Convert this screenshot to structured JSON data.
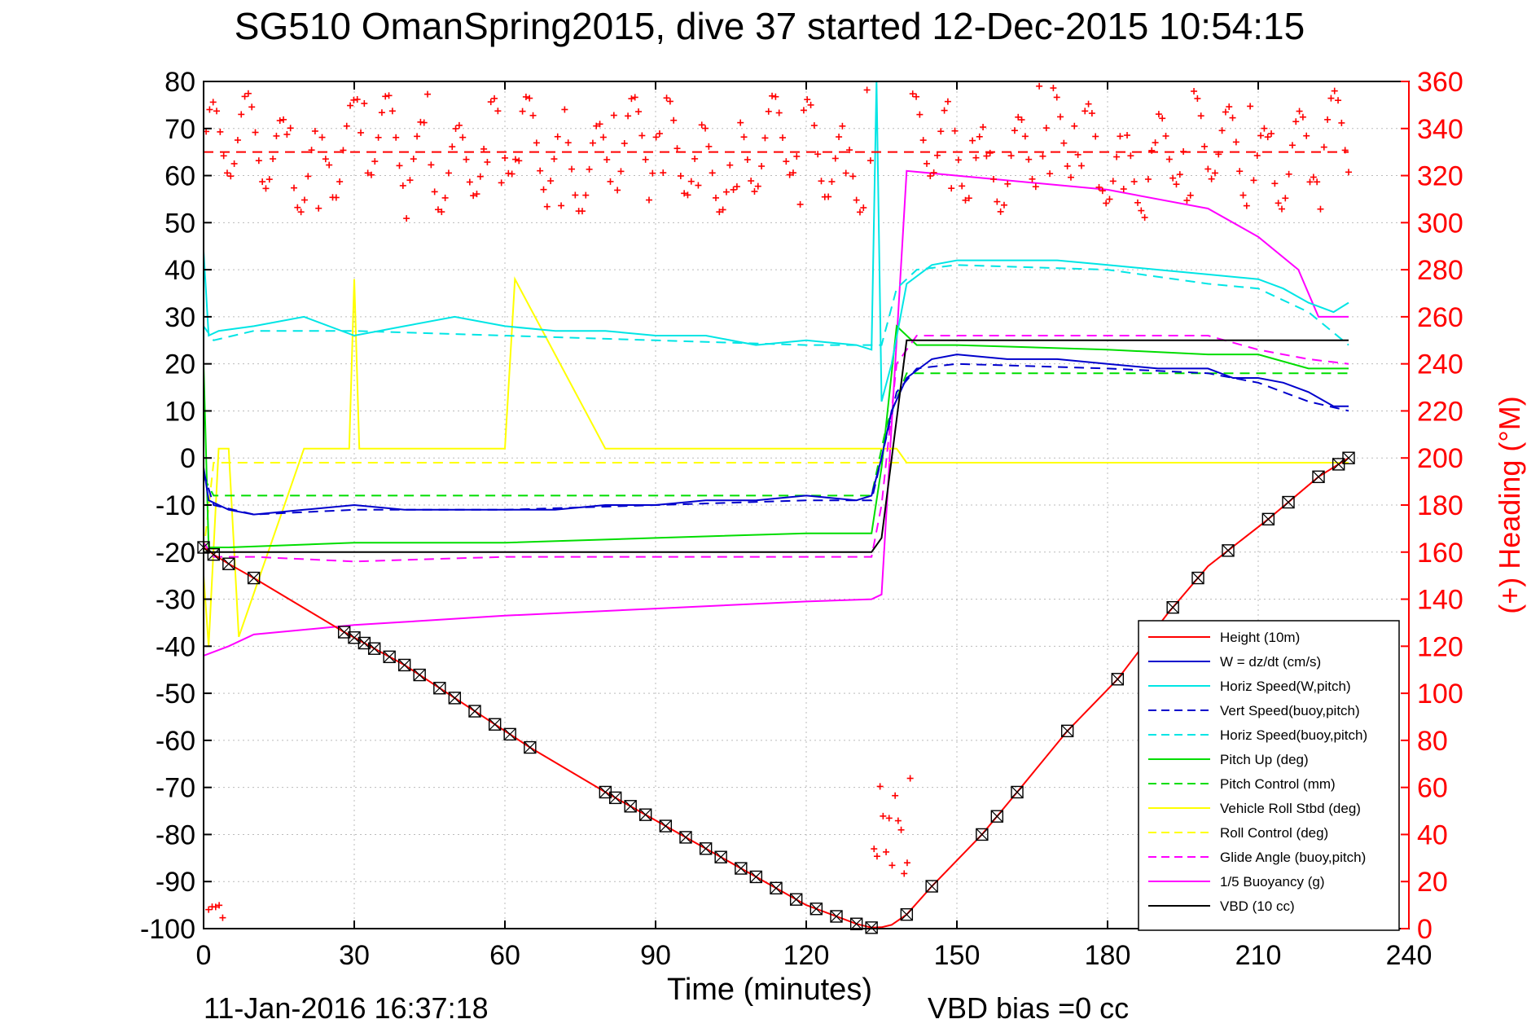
{
  "chart_data": {
    "type": "line",
    "title": "SG510 OmanSpring2015, dive 37 started 12-Dec-2015 10:54:15",
    "xlabel": "Time (minutes)",
    "ylabel": "",
    "y2label": "(+) Heading (°M)",
    "xlim": [
      0,
      240
    ],
    "ylim": [
      -100,
      80
    ],
    "y2lim": [
      0,
      360
    ],
    "xticks": [
      "0",
      "30",
      "60",
      "90",
      "120",
      "150",
      "180",
      "210",
      "240"
    ],
    "yticks": [
      "80",
      "70",
      "60",
      "50",
      "40",
      "30",
      "20",
      "10",
      "0",
      "-10",
      "-20",
      "-30",
      "-40",
      "-50",
      "-60",
      "-70",
      "-80",
      "-90",
      "-100"
    ],
    "y2ticks": [
      "360",
      "340",
      "320",
      "300",
      "280",
      "260",
      "240",
      "220",
      "200",
      "180",
      "160",
      "140",
      "120",
      "100",
      "80",
      "60",
      "40",
      "20",
      "0"
    ],
    "grid": true,
    "legend_position": "bottom-right",
    "footer_left": "11-Jan-2016 16:37:18",
    "footer_right": "VBD bias =0 cc",
    "heading_reference": 330,
    "legend": [
      {
        "label": "Height (10m)",
        "color": "#ff0000",
        "dash": false
      },
      {
        "label": "W = dz/dt (cm/s)",
        "color": "#0000cc",
        "dash": false
      },
      {
        "label": "Horiz Speed(W,pitch)",
        "color": "#00e5e5",
        "dash": false
      },
      {
        "label": "Vert Speed(buoy,pitch)",
        "color": "#0000cc",
        "dash": true
      },
      {
        "label": "Horiz Speed(buoy,pitch)",
        "color": "#00e5e5",
        "dash": true
      },
      {
        "label": "Pitch Up (deg)",
        "color": "#00dd00",
        "dash": false
      },
      {
        "label": "Pitch Control (mm)",
        "color": "#00dd00",
        "dash": true
      },
      {
        "label": "Vehicle Roll Stbd (deg)",
        "color": "#ffff00",
        "dash": false
      },
      {
        "label": "Roll Control (deg)",
        "color": "#ffff00",
        "dash": true
      },
      {
        "label": "Glide Angle (buoy,pitch)",
        "color": "#ff00ff",
        "dash": true
      },
      {
        "label": "1/5 Buoyancy (g)",
        "color": "#ff00ff",
        "dash": false
      },
      {
        "label": "VBD (10 cc)",
        "color": "#000000",
        "dash": false
      }
    ],
    "series": [
      {
        "name": "Height (10m)",
        "color": "#ff0000",
        "dash": false,
        "x": [
          0,
          2,
          5,
          10,
          28,
          40,
          60,
          65,
          80,
          100,
          120,
          130,
          133,
          135,
          137,
          140,
          145,
          155,
          162,
          172,
          182,
          192,
          200,
          212,
          222,
          228
        ],
        "y": [
          -19,
          -20.5,
          -22.5,
          -25.5,
          -37,
          -44,
          -58,
          -61.5,
          -71,
          -83,
          -95,
          -99,
          -99.8,
          -99.7,
          -99.2,
          -97,
          -91,
          -80,
          -71,
          -58,
          -47,
          -33,
          -23,
          -13,
          -4,
          0
        ]
      },
      {
        "name": "W = dz/dt (cm/s)",
        "color": "#0000cc",
        "dash": false,
        "x": [
          0,
          1,
          5,
          10,
          20,
          30,
          40,
          50,
          60,
          70,
          80,
          90,
          100,
          110,
          120,
          130,
          133,
          135,
          137,
          140,
          145,
          150,
          160,
          170,
          180,
          190,
          200,
          205,
          210,
          215,
          220,
          225,
          228
        ],
        "y": [
          -2,
          -9,
          -11,
          -12,
          -11,
          -10,
          -11,
          -11,
          -11,
          -11,
          -10,
          -10,
          -9,
          -9,
          -8,
          -9,
          -8,
          0,
          10,
          17,
          21,
          22,
          21,
          21,
          20,
          19,
          19,
          17,
          17,
          16,
          14,
          11,
          11
        ]
      },
      {
        "name": "Horiz Speed(W,pitch)",
        "color": "#00e5e5",
        "dash": false,
        "x": [
          0,
          1,
          3,
          10,
          20,
          30,
          40,
          50,
          60,
          70,
          80,
          90,
          100,
          110,
          120,
          130,
          133,
          134,
          135,
          137,
          140,
          145,
          150,
          160,
          170,
          180,
          190,
          200,
          210,
          215,
          220,
          225,
          228
        ],
        "y": [
          44,
          26,
          27,
          28,
          30,
          26,
          28,
          30,
          28,
          27,
          27,
          26,
          26,
          24,
          25,
          24,
          23,
          80,
          12,
          20,
          37,
          41,
          42,
          42,
          42,
          41,
          40,
          39,
          38,
          36,
          33,
          31,
          33
        ]
      },
      {
        "name": "Vert Speed(buoy,pitch)",
        "color": "#0000cc",
        "dash": true,
        "x": [
          0,
          2,
          10,
          30,
          60,
          90,
          120,
          133,
          135,
          138,
          142,
          150,
          180,
          200,
          210,
          220,
          228
        ],
        "y": [
          -3,
          -10,
          -12,
          -11,
          -11,
          -10,
          -9,
          -9,
          0,
          14,
          19,
          20,
          19,
          18,
          16,
          12,
          10
        ]
      },
      {
        "name": "Horiz Speed(buoy,pitch)",
        "color": "#00e5e5",
        "dash": true,
        "x": [
          0,
          2,
          10,
          30,
          60,
          90,
          120,
          133,
          135,
          138,
          142,
          150,
          180,
          200,
          210,
          220,
          228
        ],
        "y": [
          28,
          25,
          27,
          27,
          26,
          25,
          24,
          24,
          24,
          36,
          40,
          41,
          40,
          37,
          36,
          31,
          24
        ]
      },
      {
        "name": "Pitch Up (deg)",
        "color": "#00dd00",
        "dash": false,
        "x": [
          0,
          1,
          5,
          30,
          60,
          90,
          120,
          133,
          135,
          138,
          142,
          150,
          180,
          200,
          210,
          220,
          228
        ],
        "y": [
          20,
          -19,
          -19,
          -18,
          -18,
          -17,
          -16,
          -16,
          -2,
          28,
          24,
          24,
          23,
          22,
          22,
          19,
          19
        ]
      },
      {
        "name": "Pitch Control (mm)",
        "color": "#00dd00",
        "dash": true,
        "x": [
          0,
          2,
          133,
          136,
          140,
          228
        ],
        "y": [
          -4,
          -8,
          -8,
          7,
          18,
          18
        ]
      },
      {
        "name": "Vehicle Roll Stbd (deg)",
        "color": "#ffff00",
        "dash": false,
        "x": [
          0,
          1,
          3,
          5,
          7,
          20,
          29,
          30,
          31,
          40,
          60,
          62,
          80,
          100,
          120,
          133,
          135,
          138,
          140,
          150,
          160,
          170,
          180,
          200,
          210,
          220,
          228
        ],
        "y": [
          -25,
          -40,
          2,
          2,
          -38,
          2,
          2,
          38,
          2,
          2,
          2,
          38,
          2,
          2,
          2,
          2,
          2,
          2,
          -1,
          -1,
          -1,
          -1,
          -1,
          -1,
          -1,
          -1,
          -1
        ]
      },
      {
        "name": "Roll Control (deg)",
        "color": "#ffff00",
        "dash": true,
        "x": [
          0,
          2,
          133,
          136,
          228
        ],
        "y": [
          -20,
          -1,
          -1,
          -1,
          -1
        ]
      },
      {
        "name": "Glide Angle (buoy,pitch)",
        "color": "#ff00ff",
        "dash": true,
        "x": [
          0,
          2,
          10,
          30,
          60,
          90,
          120,
          133,
          135,
          138,
          142,
          160,
          180,
          200,
          210,
          220,
          228
        ],
        "y": [
          -18,
          -21,
          -21,
          -22,
          -21,
          -21,
          -21,
          -21,
          -10,
          20,
          26,
          26,
          26,
          26,
          23,
          21,
          20
        ]
      },
      {
        "name": "1/5 Buoyancy (g)",
        "color": "#ff00ff",
        "dash": false,
        "x": [
          0,
          5,
          10,
          30,
          60,
          90,
          120,
          133,
          135,
          140,
          150,
          180,
          200,
          210,
          218,
          222,
          228
        ],
        "y": [
          -42,
          -40,
          -37.5,
          -35.5,
          -33.5,
          -32,
          -30.5,
          -30,
          -29,
          61,
          60,
          57,
          53,
          47,
          40,
          30,
          30
        ]
      },
      {
        "name": "VBD (10 cc)",
        "color": "#000000",
        "dash": false,
        "x": [
          0,
          1,
          5,
          133,
          135,
          140,
          228
        ],
        "y": [
          -19,
          -20,
          -20,
          -20,
          -17,
          25,
          25
        ]
      }
    ]
  }
}
